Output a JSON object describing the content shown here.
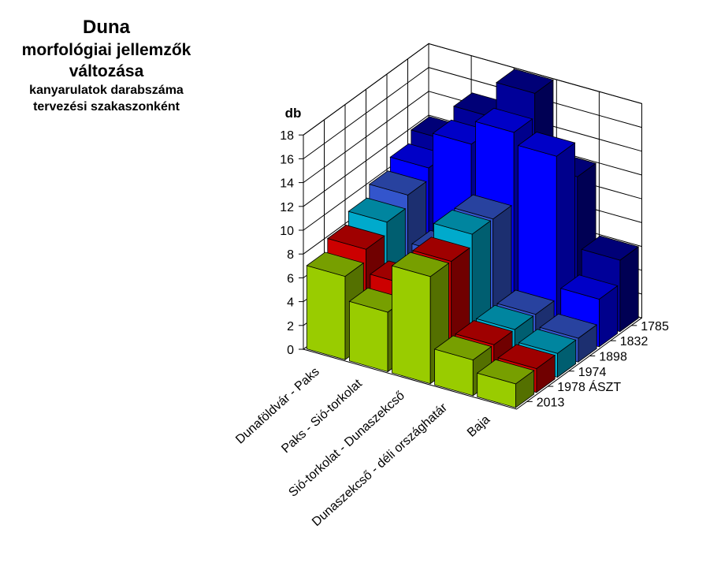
{
  "title": {
    "line1": "Duna",
    "line2": "morfológiai jellemzők",
    "line3": "változása",
    "subtitle1": "kanyarulatok darabszáma",
    "subtitle2": "tervezési szakaszonként"
  },
  "chart_data": {
    "type": "bar",
    "subtype": "3d-column",
    "title": "Duna morfológiai jellemzők változása",
    "subtitle": "kanyarulatok darabszáma tervezési szakaszonként",
    "ylabel": "db",
    "ylim": [
      0,
      18
    ],
    "yticks": [
      0,
      2,
      4,
      6,
      8,
      10,
      12,
      14,
      16,
      18
    ],
    "grid": true,
    "categories": [
      "Dunaföldvár - Paks",
      "Paks - Sió-torkolat",
      "Sió-torkolat - Dunaszekcső",
      "Dunaszekcső - déli országhatár",
      "Baja"
    ],
    "series": [
      {
        "name": "2013",
        "color": "#99cc00",
        "values": [
          7,
          5,
          9,
          3,
          2
        ]
      },
      {
        "name": "1978 ÁSZT",
        "color": "#cc0000",
        "values": [
          8,
          6,
          9,
          3,
          2
        ]
      },
      {
        "name": "1974",
        "color": "#00aacc",
        "values": [
          9,
          5,
          10,
          3,
          2
        ]
      },
      {
        "name": "1898",
        "color": "#3355cc",
        "values": [
          10,
          6,
          10,
          3,
          2
        ]
      },
      {
        "name": "1832",
        "color": "#0000ff",
        "values": [
          11,
          14,
          16,
          15,
          4
        ]
      },
      {
        "name": "1785",
        "color": "#000099",
        "values": [
          12,
          15,
          18,
          12,
          6
        ]
      }
    ]
  }
}
